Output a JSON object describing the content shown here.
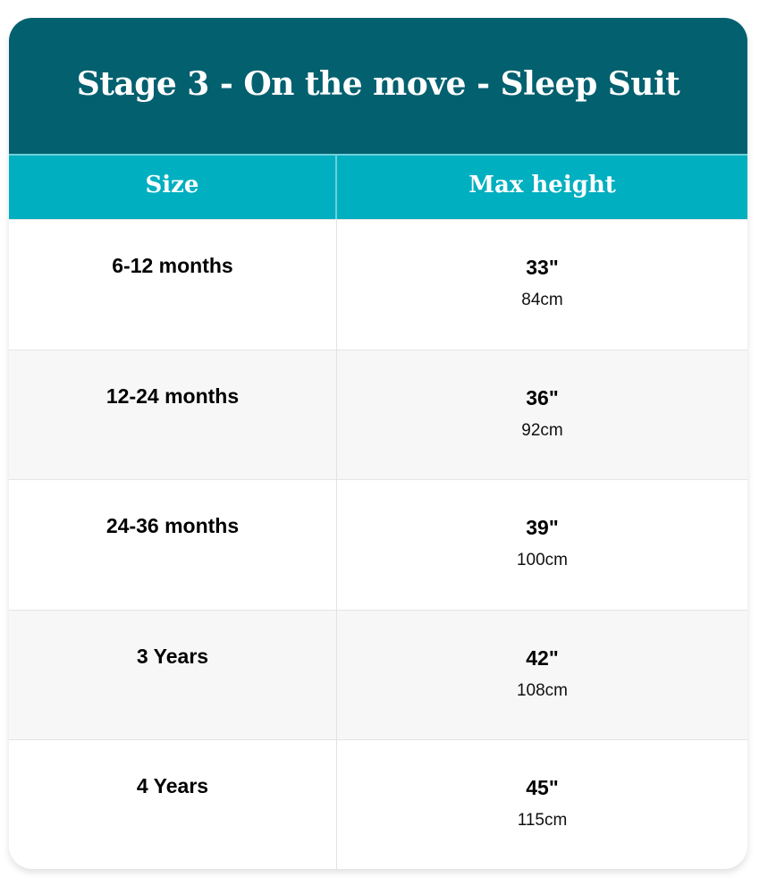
{
  "title": "Stage 3 - On the move - Sleep Suit",
  "columns": [
    "Size",
    "Max height"
  ],
  "rows": [
    {
      "size": "6-12 months",
      "inches": "33\"",
      "cm": "84cm"
    },
    {
      "size": "12-24 months",
      "inches": "36\"",
      "cm": "92cm"
    },
    {
      "size": "24-36 months",
      "inches": "39\"",
      "cm": "100cm"
    },
    {
      "size": "3 Years",
      "inches": "42\"",
      "cm": "108cm"
    },
    {
      "size": "4 Years",
      "inches": "45\"",
      "cm": "115cm"
    }
  ],
  "colors": {
    "title_bg": "#02606f",
    "header_bg": "#00afc0",
    "alt_row": "#f7f7f7"
  }
}
